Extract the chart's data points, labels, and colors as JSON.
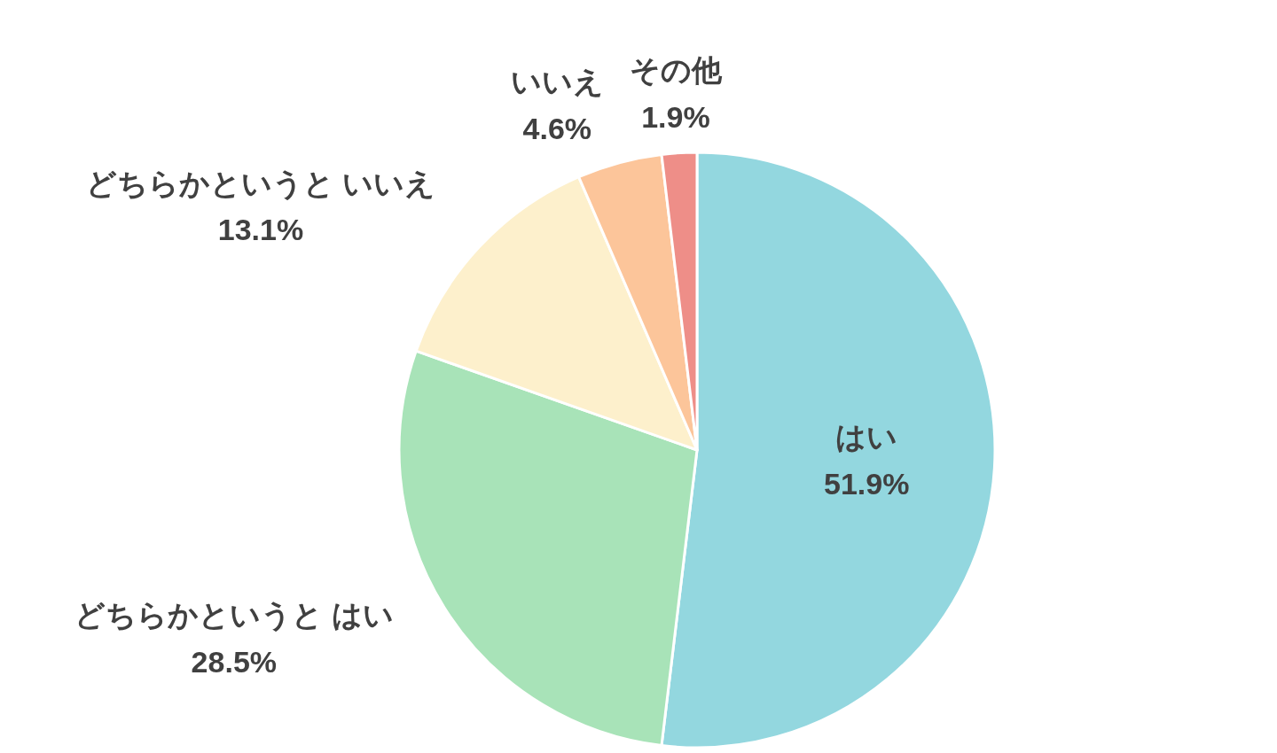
{
  "chart_data": {
    "type": "pie",
    "categories": [
      "はい",
      "どちらかというと はい",
      "どちらかというと いいえ",
      "いいえ",
      "その他"
    ],
    "values": [
      51.9,
      28.5,
      13.1,
      4.6,
      1.9
    ],
    "value_labels": [
      "51.9%",
      "28.5%",
      "13.1%",
      "4.6%",
      "1.9%"
    ],
    "colors": [
      "#93d7df",
      "#a8e3b8",
      "#fdf0cc",
      "#fcc59a",
      "#ee8e88"
    ]
  }
}
